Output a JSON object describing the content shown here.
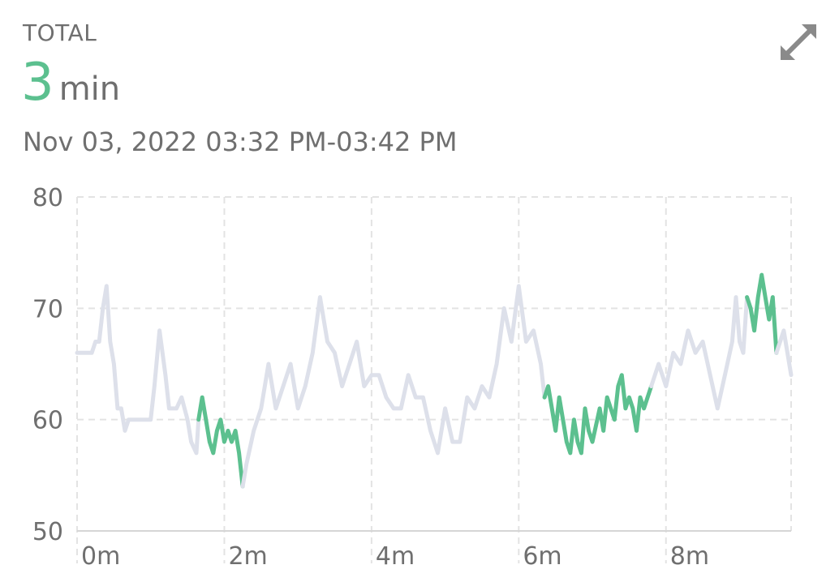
{
  "header": {
    "label": "TOTAL",
    "value": "3",
    "unit": "min",
    "range": "Nov 03, 2022 03:32 PM-03:42 PM"
  },
  "icons": {
    "expand": "expand-icon"
  },
  "colors": {
    "highlight": "#5cc08f",
    "base": "#dde0ea",
    "grid": "#e3e3e3",
    "text": "#6f6f6f"
  },
  "chart_data": {
    "type": "line",
    "xlim": [
      0,
      9.7
    ],
    "ylim": [
      50,
      80
    ],
    "x_ticks": [
      0,
      2,
      4,
      6,
      8
    ],
    "x_tick_labels": [
      "0m",
      "2m",
      "4m",
      "6m",
      "8m"
    ],
    "y_ticks": [
      50,
      60,
      70,
      80
    ],
    "y_tick_labels": [
      "50",
      "60",
      "70",
      "80"
    ],
    "grid": true,
    "series": [
      {
        "values": [
          [
            0.0,
            66
          ],
          [
            0.1,
            66
          ],
          [
            0.2,
            66
          ],
          [
            0.25,
            67
          ],
          [
            0.3,
            67
          ],
          [
            0.35,
            70
          ],
          [
            0.4,
            72
          ],
          [
            0.45,
            67
          ],
          [
            0.5,
            65
          ],
          [
            0.55,
            61
          ],
          [
            0.6,
            61
          ],
          [
            0.65,
            59
          ],
          [
            0.7,
            60
          ],
          [
            0.8,
            60
          ],
          [
            0.9,
            60
          ],
          [
            1.0,
            60
          ],
          [
            1.05,
            63
          ],
          [
            1.12,
            68
          ],
          [
            1.2,
            64
          ],
          [
            1.25,
            61
          ],
          [
            1.35,
            61
          ],
          [
            1.42,
            62
          ],
          [
            1.5,
            60
          ],
          [
            1.55,
            58
          ],
          [
            1.62,
            57
          ],
          [
            1.65,
            60
          ],
          [
            1.65,
            60
          ],
          [
            1.7,
            62
          ],
          [
            1.75,
            60
          ],
          [
            1.8,
            58
          ],
          [
            1.85,
            57
          ],
          [
            1.9,
            59
          ],
          [
            1.95,
            60
          ],
          [
            2.0,
            58
          ],
          [
            2.05,
            59
          ],
          [
            2.1,
            58
          ],
          [
            2.15,
            59
          ],
          [
            2.2,
            57
          ],
          [
            2.25,
            54
          ],
          [
            2.25,
            54
          ],
          [
            2.3,
            56
          ],
          [
            2.4,
            59
          ],
          [
            2.5,
            61
          ],
          [
            2.6,
            65
          ],
          [
            2.7,
            61
          ],
          [
            2.8,
            63
          ],
          [
            2.9,
            65
          ],
          [
            3.0,
            61
          ],
          [
            3.1,
            63
          ],
          [
            3.2,
            66
          ],
          [
            3.3,
            71
          ],
          [
            3.4,
            67
          ],
          [
            3.5,
            66
          ],
          [
            3.6,
            63
          ],
          [
            3.7,
            65
          ],
          [
            3.8,
            67
          ],
          [
            3.9,
            63
          ],
          [
            4.0,
            64
          ],
          [
            4.1,
            64
          ],
          [
            4.2,
            62
          ],
          [
            4.3,
            61
          ],
          [
            4.4,
            61
          ],
          [
            4.5,
            64
          ],
          [
            4.6,
            62
          ],
          [
            4.7,
            62
          ],
          [
            4.8,
            59
          ],
          [
            4.9,
            57
          ],
          [
            5.0,
            61
          ],
          [
            5.1,
            58
          ],
          [
            5.2,
            58
          ],
          [
            5.3,
            62
          ],
          [
            5.4,
            61
          ],
          [
            5.5,
            63
          ],
          [
            5.6,
            62
          ],
          [
            5.7,
            65
          ],
          [
            5.8,
            70
          ],
          [
            5.9,
            67
          ],
          [
            6.0,
            72
          ],
          [
            6.1,
            67
          ],
          [
            6.2,
            68
          ],
          [
            6.3,
            65
          ],
          [
            6.35,
            62
          ],
          [
            6.35,
            62
          ],
          [
            6.4,
            63
          ],
          [
            6.45,
            61
          ],
          [
            6.5,
            59
          ],
          [
            6.55,
            62
          ],
          [
            6.6,
            60
          ],
          [
            6.65,
            58
          ],
          [
            6.7,
            57
          ],
          [
            6.75,
            60
          ],
          [
            6.8,
            58
          ],
          [
            6.85,
            57
          ],
          [
            6.9,
            61
          ],
          [
            6.95,
            59
          ],
          [
            7.0,
            58
          ],
          [
            7.1,
            61
          ],
          [
            7.15,
            59
          ],
          [
            7.2,
            62
          ],
          [
            7.3,
            60
          ],
          [
            7.35,
            63
          ],
          [
            7.4,
            64
          ],
          [
            7.45,
            61
          ],
          [
            7.5,
            62
          ],
          [
            7.55,
            61
          ],
          [
            7.6,
            59
          ],
          [
            7.65,
            62
          ],
          [
            7.7,
            61
          ],
          [
            7.75,
            62
          ],
          [
            7.8,
            63
          ],
          [
            7.8,
            63
          ],
          [
            7.9,
            65
          ],
          [
            8.0,
            63
          ],
          [
            8.1,
            66
          ],
          [
            8.2,
            65
          ],
          [
            8.3,
            68
          ],
          [
            8.4,
            66
          ],
          [
            8.5,
            67
          ],
          [
            8.6,
            64
          ],
          [
            8.7,
            61
          ],
          [
            8.8,
            64
          ],
          [
            8.9,
            67
          ],
          [
            8.95,
            71
          ],
          [
            9.0,
            67
          ],
          [
            9.05,
            66
          ],
          [
            9.1,
            71
          ],
          [
            9.1,
            71
          ],
          [
            9.15,
            70
          ],
          [
            9.2,
            68
          ],
          [
            9.25,
            71
          ],
          [
            9.3,
            73
          ],
          [
            9.35,
            71
          ],
          [
            9.4,
            69
          ],
          [
            9.45,
            71
          ],
          [
            9.5,
            66
          ],
          [
            9.5,
            66
          ],
          [
            9.6,
            68
          ],
          [
            9.7,
            64
          ]
        ]
      }
    ],
    "highlight_segments": [
      [
        1.65,
        2.25
      ],
      [
        6.35,
        7.8
      ],
      [
        9.1,
        9.5
      ]
    ]
  }
}
